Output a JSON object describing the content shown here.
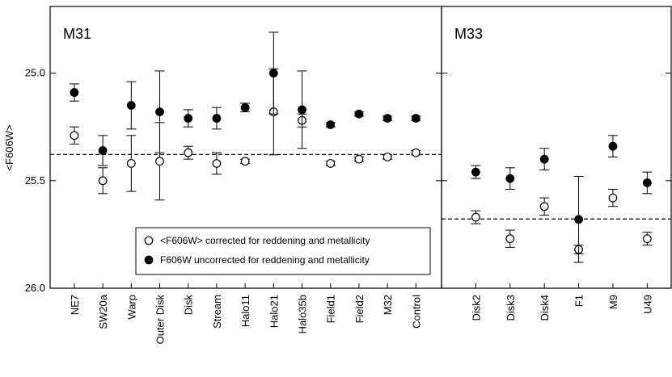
{
  "chart_data": [
    {
      "type": "scatter",
      "annotation": "M31",
      "ylabel": "<F606W>",
      "ylim": [
        26.0,
        24.69
      ],
      "yticks": [
        {
          "value": 26.0,
          "label": "26.0"
        },
        25.5,
        {
          "value": 25.0,
          "label": "25.0"
        }
      ],
      "reference_line": 25.378,
      "legend": "lower right",
      "categories": [
        "NE7",
        "SW20a",
        "Warp",
        "Outer Disk",
        "Disk",
        "Stream",
        "Halo11",
        "Halo21",
        "Halo35b",
        "Field1",
        "Field2",
        "M32",
        "Control"
      ],
      "series": [
        {
          "name": "<F606W> corrected for reddening and metallicity",
          "color": "#000000",
          "marker": "open",
          "values": [
            25.29,
            25.5,
            25.42,
            25.41,
            25.37,
            25.42,
            25.41,
            25.18,
            25.22,
            25.42,
            25.4,
            25.39,
            25.37
          ],
          "errors": [
            0.04,
            0.06,
            0.13,
            0.18,
            0.03,
            0.05,
            0.01,
            0.2,
            0.03,
            0.01,
            0.01,
            0.01,
            0.01
          ]
        },
        {
          "name": "F606W uncorrected for reddening and metallicity",
          "color": "#000000",
          "marker": "filled",
          "values": [
            25.09,
            25.36,
            25.15,
            25.18,
            25.21,
            25.21,
            25.16,
            25.0,
            25.17,
            25.24,
            25.19,
            25.21,
            25.21
          ],
          "errors": [
            0.04,
            0.07,
            0.11,
            0.19,
            0.04,
            0.05,
            0.02,
            0.19,
            0.18,
            0.01,
            0.01,
            0.01,
            0.01
          ]
        }
      ]
    },
    {
      "type": "scatter",
      "annotation": "M33",
      "ylim": [
        26.0,
        24.69
      ],
      "yticks": [
        26.0,
        25.5,
        25.0
      ],
      "reference_line": 25.678,
      "categories": [
        "Disk2",
        "Disk3",
        "Disk4",
        "F1",
        "M9",
        "U49"
      ],
      "series": [
        {
          "color": "#000000",
          "marker": "open",
          "values": [
            25.67,
            25.77,
            25.62,
            25.82,
            25.58,
            25.77
          ],
          "errors": [
            0.03,
            0.04,
            0.04,
            0.02,
            0.04,
            0.03
          ]
        },
        {
          "color": "#000000",
          "marker": "filled",
          "values": [
            25.46,
            25.49,
            25.4,
            25.68,
            25.34,
            25.51
          ],
          "errors": [
            0.03,
            0.05,
            0.05,
            0.2,
            0.05,
            0.05
          ]
        }
      ]
    }
  ]
}
